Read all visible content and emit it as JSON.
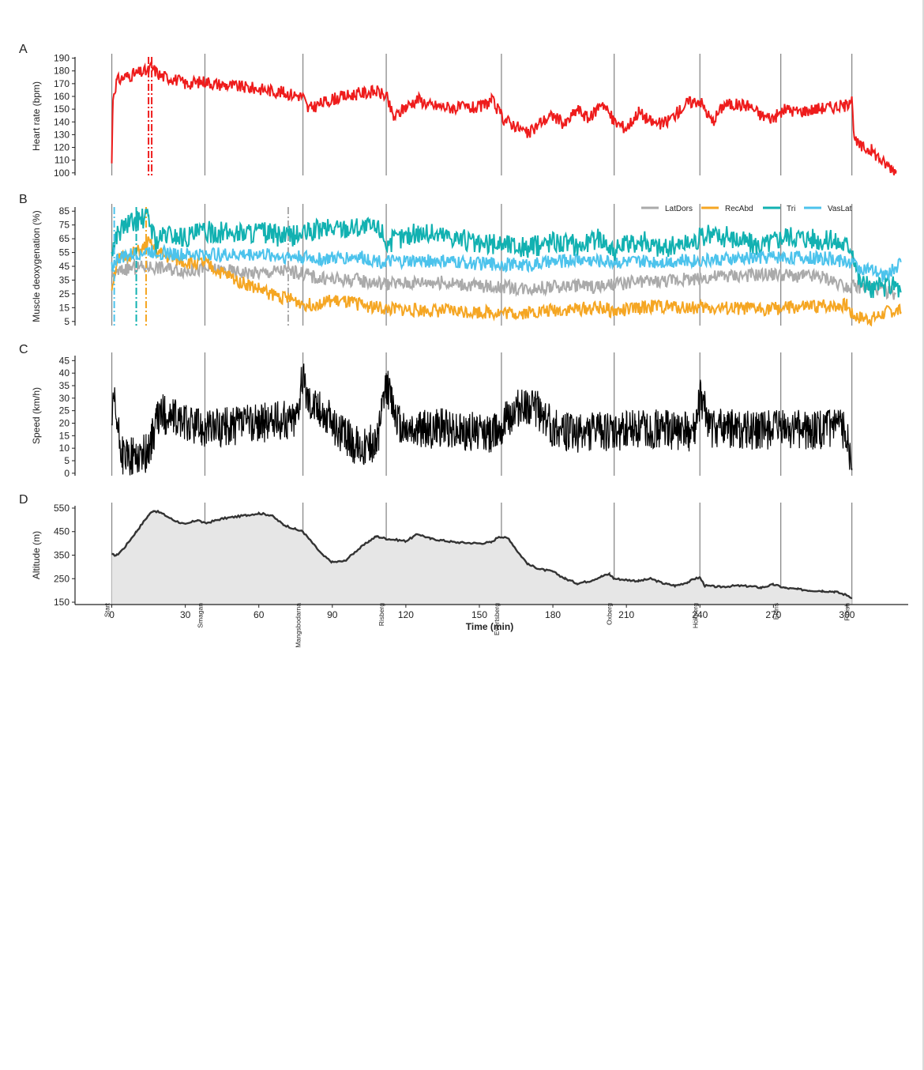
{
  "figure": {
    "x_axis": {
      "label": "Time (min)",
      "ticks": [
        0,
        30,
        60,
        90,
        120,
        150,
        180,
        210,
        240,
        270,
        300
      ],
      "range": [
        -15,
        325
      ]
    },
    "checkpoints": [
      {
        "name": "Start",
        "time": 0
      },
      {
        "name": "Smagan",
        "time": 38
      },
      {
        "name": "Mangsbodarna",
        "time": 78
      },
      {
        "name": "Risberg",
        "time": 112
      },
      {
        "name": "Evertsberg",
        "time": 159
      },
      {
        "name": "Oxberg",
        "time": 205
      },
      {
        "name": "Hökberg",
        "time": 240
      },
      {
        "name": "Eldris",
        "time": 273
      },
      {
        "name": "Finish",
        "time": 302
      }
    ]
  },
  "chart_data": [
    {
      "panel": "A",
      "type": "line",
      "ylabel": "Heart rate (bpm)",
      "ylim": [
        98,
        191
      ],
      "yticks": [
        100,
        110,
        120,
        130,
        140,
        150,
        160,
        170,
        180,
        190
      ],
      "color": "#ee1c1c",
      "markers": [
        {
          "time": 15,
          "color": "#ee1c1c"
        }
      ],
      "series": [
        {
          "x": [
            0,
            0.5,
            2,
            5,
            10,
            15,
            16,
            20,
            25,
            30,
            35,
            38,
            42,
            50,
            60,
            70,
            78,
            80,
            90,
            100,
            108,
            112,
            115,
            120,
            125,
            130,
            140,
            150,
            155,
            160,
            165,
            170,
            175,
            180,
            185,
            190,
            195,
            200,
            205,
            210,
            215,
            220,
            225,
            230,
            235,
            240,
            245,
            250,
            260,
            265,
            270,
            275,
            280,
            290,
            300,
            302,
            303,
            306,
            310,
            315,
            320
          ],
          "y": [
            108,
            160,
            172,
            175,
            178,
            180,
            183,
            176,
            174,
            170,
            171,
            172,
            170,
            168,
            166,
            163,
            160,
            150,
            158,
            162,
            164,
            160,
            143,
            152,
            158,
            153,
            151,
            151,
            157,
            142,
            137,
            130,
            140,
            145,
            138,
            150,
            142,
            156,
            140,
            135,
            148,
            140,
            138,
            146,
            155,
            157,
            140,
            154,
            153,
            145,
            143,
            150,
            148,
            151,
            153,
            162,
            125,
            120,
            118,
            108,
            102
          ]
        }
      ]
    },
    {
      "panel": "B",
      "type": "line",
      "ylabel": "Muscle deoxygenation (%)",
      "ylim": [
        2,
        88
      ],
      "yticks": [
        5,
        15,
        25,
        35,
        45,
        55,
        65,
        75,
        85
      ],
      "legend_position": "top-right",
      "series": [
        {
          "name": "LatDors",
          "color": "#aaaaaa",
          "marker": 72,
          "x": [
            0,
            2,
            5,
            10,
            15,
            20,
            30,
            40,
            50,
            60,
            70,
            78,
            85,
            100,
            112,
            130,
            150,
            170,
            190,
            200,
            210,
            230,
            250,
            270,
            290,
            302,
            310,
            320
          ],
          "y": [
            38,
            40,
            43,
            44,
            45,
            44,
            42,
            43,
            41,
            40,
            42,
            40,
            36,
            35,
            32,
            34,
            31,
            29,
            31,
            30,
            33,
            35,
            38,
            39,
            37,
            30,
            30,
            25
          ]
        },
        {
          "name": "RecAbd",
          "color": "#f5a623",
          "marker": 14,
          "x": [
            0,
            2,
            5,
            10,
            13,
            15,
            18,
            22,
            30,
            38,
            45,
            55,
            65,
            75,
            80,
            90,
            100,
            112,
            130,
            150,
            165,
            180,
            200,
            205,
            220,
            240,
            260,
            280,
            300,
            302,
            305,
            310,
            318,
            322
          ],
          "y": [
            30,
            48,
            52,
            55,
            58,
            62,
            56,
            52,
            48,
            47,
            40,
            32,
            25,
            20,
            17,
            20,
            18,
            14,
            13,
            12,
            11,
            13,
            15,
            12,
            16,
            15,
            14,
            15,
            17,
            10,
            8,
            7,
            13,
            12
          ]
        },
        {
          "name": "Tri",
          "color": "#12b1b1",
          "marker": 10,
          "x": [
            0,
            2,
            5,
            10,
            15,
            18,
            22,
            30,
            38,
            50,
            60,
            70,
            78,
            85,
            100,
            110,
            112,
            125,
            140,
            150,
            160,
            170,
            180,
            190,
            200,
            205,
            215,
            225,
            235,
            245,
            255,
            265,
            275,
            285,
            295,
            302,
            305,
            310,
            315,
            320,
            322
          ],
          "y": [
            55,
            68,
            74,
            78,
            80,
            62,
            68,
            66,
            70,
            69,
            70,
            66,
            68,
            72,
            74,
            72,
            62,
            70,
            67,
            60,
            62,
            58,
            64,
            60,
            66,
            56,
            64,
            58,
            62,
            68,
            65,
            60,
            68,
            66,
            63,
            60,
            35,
            28,
            30,
            32,
            26
          ]
        },
        {
          "name": "VasLat",
          "color": "#4cc3ec",
          "marker": 1,
          "x": [
            0,
            2,
            5,
            10,
            15,
            20,
            30,
            40,
            50,
            60,
            70,
            78,
            85,
            100,
            112,
            130,
            150,
            170,
            190,
            210,
            230,
            250,
            270,
            290,
            302,
            305,
            310,
            315,
            320,
            322
          ],
          "y": [
            45,
            50,
            52,
            54,
            56,
            55,
            53,
            54,
            53,
            54,
            52,
            52,
            50,
            52,
            48,
            49,
            47,
            46,
            50,
            48,
            49,
            50,
            52,
            51,
            48,
            44,
            42,
            38,
            44,
            48
          ]
        }
      ]
    },
    {
      "panel": "C",
      "type": "line",
      "ylabel": "Speed (km/h)",
      "ylim": [
        -1,
        47
      ],
      "yticks": [
        0,
        5,
        10,
        15,
        20,
        25,
        30,
        35,
        40,
        45
      ],
      "color": "#000000",
      "series": [
        {
          "x": [
            0,
            1,
            2,
            4,
            6,
            10,
            14,
            16,
            18,
            20,
            25,
            30,
            35,
            40,
            50,
            60,
            70,
            75,
            78,
            80,
            85,
            90,
            95,
            100,
            108,
            110,
            112,
            118,
            125,
            135,
            145,
            155,
            160,
            165,
            170,
            175,
            180,
            190,
            200,
            205,
            210,
            220,
            230,
            238,
            240,
            245,
            255,
            265,
            275,
            285,
            295,
            300,
            302
          ],
          "y": [
            20,
            28,
            20,
            8,
            6,
            7,
            8,
            12,
            20,
            24,
            22,
            20,
            19,
            18,
            19,
            20,
            21,
            22,
            38,
            30,
            25,
            20,
            15,
            11,
            12,
            22,
            35,
            18,
            17,
            18,
            17,
            16,
            20,
            25,
            28,
            24,
            18,
            16,
            17,
            15,
            18,
            18,
            17,
            16,
            30,
            18,
            18,
            17,
            18,
            17,
            18,
            17,
            2
          ]
        }
      ]
    },
    {
      "panel": "D",
      "type": "area",
      "ylabel": "Altitude (m)",
      "ylim": [
        140,
        560
      ],
      "yticks": [
        150,
        250,
        350,
        450,
        550
      ],
      "color": "#333333",
      "fill": "#e6e6e6",
      "series": [
        {
          "x": [
            0,
            2,
            5,
            10,
            15,
            17,
            20,
            25,
            30,
            35,
            38,
            45,
            55,
            60,
            65,
            70,
            75,
            78,
            82,
            86,
            90,
            95,
            100,
            105,
            108,
            112,
            120,
            125,
            130,
            140,
            150,
            155,
            158,
            162,
            166,
            170,
            175,
            180,
            185,
            190,
            195,
            200,
            203,
            205,
            210,
            215,
            220,
            225,
            230,
            235,
            238,
            240,
            242,
            248,
            255,
            260,
            265,
            270,
            275,
            280,
            285,
            290,
            295,
            300,
            302
          ],
          "y": [
            352,
            350,
            380,
            450,
            520,
            540,
            530,
            500,
            480,
            500,
            485,
            505,
            520,
            528,
            520,
            480,
            460,
            450,
            400,
            350,
            320,
            325,
            370,
            410,
            430,
            420,
            410,
            440,
            420,
            405,
            400,
            405,
            430,
            420,
            360,
            310,
            290,
            280,
            250,
            230,
            240,
            260,
            270,
            250,
            245,
            240,
            250,
            230,
            220,
            235,
            250,
            255,
            220,
            215,
            220,
            218,
            212,
            225,
            210,
            205,
            200,
            198,
            195,
            180,
            170
          ]
        }
      ]
    }
  ]
}
